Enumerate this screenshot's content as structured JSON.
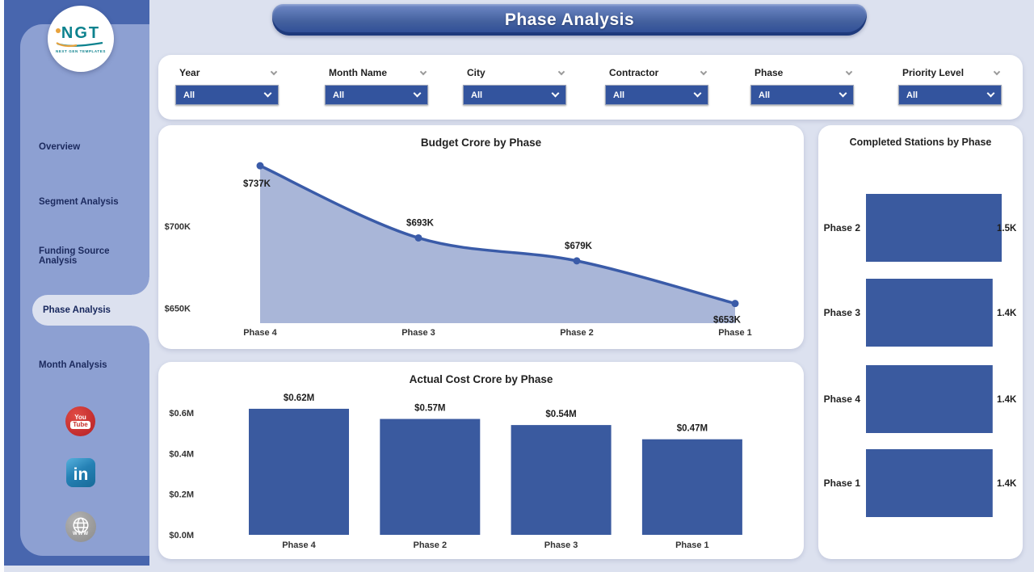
{
  "page": {
    "title": "Phase Analysis"
  },
  "logo": {
    "text": "NGT",
    "subtext": "NEXT GEN TEMPLATES"
  },
  "sidebar": {
    "items": [
      {
        "label": "Overview",
        "active": false
      },
      {
        "label": "Segment Analysis",
        "active": false
      },
      {
        "label": "Funding Source Analysis",
        "active": false
      },
      {
        "label": "Phase Analysis",
        "active": true
      },
      {
        "label": "Month Analysis",
        "active": false
      }
    ],
    "youtube": {
      "line1": "You",
      "line2": "Tube"
    },
    "linkedin_label": "in",
    "website_label": "WWW"
  },
  "filters": [
    {
      "label": "Year",
      "value": "All"
    },
    {
      "label": "Month Name",
      "value": "All"
    },
    {
      "label": "City",
      "value": "All"
    },
    {
      "label": "Contractor",
      "value": "All"
    },
    {
      "label": "Phase",
      "value": "All"
    },
    {
      "label": "Priority Level",
      "value": "All"
    }
  ],
  "chart_data": [
    {
      "type": "area",
      "title": "Budget Crore by Phase",
      "categories": [
        "Phase 4",
        "Phase 3",
        "Phase 2",
        "Phase 1"
      ],
      "values": [
        737,
        693,
        679,
        653
      ],
      "value_labels": [
        "$737K",
        "$693K",
        "$679K",
        "$653K"
      ],
      "yticks": [
        {
          "value": 700,
          "label": "$700K"
        },
        {
          "value": 650,
          "label": "$650K"
        }
      ],
      "ylim": [
        641,
        742
      ],
      "grid": false,
      "legend": false
    },
    {
      "type": "bar",
      "title": "Actual Cost Crore by Phase",
      "categories": [
        "Phase 4",
        "Phase 2",
        "Phase 3",
        "Phase 1"
      ],
      "values": [
        0.62,
        0.57,
        0.54,
        0.47
      ],
      "value_labels": [
        "$0.62M",
        "$0.57M",
        "$0.54M",
        "$0.47M"
      ],
      "yticks": [
        {
          "value": 0.0,
          "label": "$0.0M"
        },
        {
          "value": 0.2,
          "label": "$0.2M"
        },
        {
          "value": 0.4,
          "label": "$0.4M"
        },
        {
          "value": 0.6,
          "label": "$0.6M"
        }
      ],
      "ylim": [
        0,
        0.68
      ],
      "grid": false,
      "legend": false
    },
    {
      "type": "bar-horizontal",
      "title": "Completed Stations by Phase",
      "categories": [
        "Phase 2",
        "Phase 3",
        "Phase 4",
        "Phase 1"
      ],
      "values": [
        1.5,
        1.4,
        1.4,
        1.4
      ],
      "value_labels": [
        "1.5K",
        "1.4K",
        "1.4K",
        "1.4K"
      ],
      "xlim": [
        0,
        1.5
      ],
      "grid": false,
      "legend": false
    }
  ],
  "colors": {
    "accent_blue": "#33549e",
    "bar_blue": "#3a5a9f",
    "line_blue": "#3a5ba8",
    "area_fill": "#a9b6d8",
    "sidebar_dark": "#4866ae",
    "sidebar_panel": "#8da0d2",
    "page_bg": "#dce1ef",
    "navy_text": "#1c2a5e",
    "youtube_red": "#c4302b",
    "linkedin_blue": "#2581b5"
  }
}
